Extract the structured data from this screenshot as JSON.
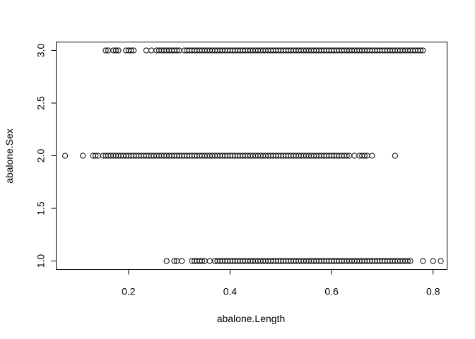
{
  "chart_data": {
    "type": "scatter",
    "title": "",
    "xlabel": "abalone.Length",
    "ylabel": "abalone.Sex",
    "xlim": [
      0.0575,
      0.8275
    ],
    "ylim": [
      0.92,
      3.08
    ],
    "xticks": [
      0.2,
      0.4,
      0.6,
      0.8
    ],
    "xtick_labels": [
      "0.2",
      "0.4",
      "0.6",
      "0.8"
    ],
    "yticks": [
      1.0,
      1.5,
      2.0,
      2.5,
      3.0
    ],
    "ytick_labels": [
      "1.0",
      "1.5",
      "2.0",
      "2.5",
      "3.0"
    ],
    "grid": false,
    "marker": "open-circle",
    "series": [
      {
        "y": 3.0,
        "x": [
          0.155,
          0.16,
          0.17,
          0.175,
          0.18,
          0.195,
          0.2,
          0.205,
          0.21,
          0.235,
          0.245,
          0.255,
          0.26,
          0.265,
          0.27,
          0.275,
          0.28,
          0.285,
          0.29,
          0.295,
          0.3,
          0.31,
          0.315,
          0.32,
          0.325,
          0.33,
          0.335,
          0.34,
          0.345,
          0.35,
          0.355,
          0.36,
          0.365,
          0.37,
          0.375,
          0.38,
          0.385,
          0.39,
          0.395,
          0.4,
          0.405,
          0.41,
          0.415,
          0.42,
          0.425,
          0.43,
          0.435,
          0.44,
          0.445,
          0.45,
          0.455,
          0.46,
          0.465,
          0.47,
          0.475,
          0.48,
          0.485,
          0.49,
          0.495,
          0.5,
          0.505,
          0.51,
          0.515,
          0.52,
          0.525,
          0.53,
          0.535,
          0.54,
          0.545,
          0.55,
          0.555,
          0.56,
          0.565,
          0.57,
          0.575,
          0.58,
          0.585,
          0.59,
          0.595,
          0.6,
          0.605,
          0.61,
          0.615,
          0.62,
          0.625,
          0.63,
          0.635,
          0.64,
          0.645,
          0.65,
          0.655,
          0.66,
          0.665,
          0.67,
          0.675,
          0.68,
          0.685,
          0.69,
          0.695,
          0.7,
          0.705,
          0.71,
          0.715,
          0.72,
          0.725,
          0.73,
          0.735,
          0.74,
          0.745,
          0.75,
          0.755,
          0.76,
          0.765,
          0.77,
          0.775,
          0.78
        ]
      },
      {
        "y": 2.0,
        "x": [
          0.075,
          0.11,
          0.13,
          0.135,
          0.14,
          0.15,
          0.155,
          0.16,
          0.165,
          0.17,
          0.175,
          0.18,
          0.185,
          0.19,
          0.195,
          0.2,
          0.205,
          0.21,
          0.215,
          0.22,
          0.225,
          0.23,
          0.235,
          0.24,
          0.245,
          0.25,
          0.255,
          0.26,
          0.265,
          0.27,
          0.275,
          0.28,
          0.285,
          0.29,
          0.295,
          0.3,
          0.305,
          0.31,
          0.315,
          0.32,
          0.325,
          0.33,
          0.335,
          0.34,
          0.345,
          0.35,
          0.355,
          0.36,
          0.365,
          0.37,
          0.375,
          0.38,
          0.385,
          0.39,
          0.395,
          0.4,
          0.405,
          0.41,
          0.415,
          0.42,
          0.425,
          0.43,
          0.435,
          0.44,
          0.445,
          0.45,
          0.455,
          0.46,
          0.465,
          0.47,
          0.475,
          0.48,
          0.485,
          0.49,
          0.495,
          0.5,
          0.505,
          0.51,
          0.515,
          0.52,
          0.525,
          0.53,
          0.535,
          0.54,
          0.545,
          0.55,
          0.555,
          0.56,
          0.565,
          0.57,
          0.575,
          0.58,
          0.585,
          0.59,
          0.595,
          0.6,
          0.605,
          0.61,
          0.615,
          0.62,
          0.625,
          0.63,
          0.635,
          0.645,
          0.655,
          0.66,
          0.665,
          0.67,
          0.68,
          0.725
        ]
      },
      {
        "y": 1.0,
        "x": [
          0.275,
          0.29,
          0.295,
          0.305,
          0.325,
          0.33,
          0.335,
          0.34,
          0.345,
          0.35,
          0.36,
          0.37,
          0.375,
          0.38,
          0.385,
          0.39,
          0.395,
          0.4,
          0.405,
          0.41,
          0.415,
          0.42,
          0.425,
          0.43,
          0.435,
          0.44,
          0.445,
          0.45,
          0.455,
          0.46,
          0.465,
          0.47,
          0.475,
          0.48,
          0.485,
          0.49,
          0.495,
          0.5,
          0.505,
          0.51,
          0.515,
          0.52,
          0.525,
          0.53,
          0.535,
          0.54,
          0.545,
          0.55,
          0.555,
          0.56,
          0.565,
          0.57,
          0.575,
          0.58,
          0.585,
          0.59,
          0.595,
          0.6,
          0.605,
          0.61,
          0.615,
          0.62,
          0.625,
          0.63,
          0.635,
          0.64,
          0.645,
          0.65,
          0.655,
          0.66,
          0.665,
          0.67,
          0.675,
          0.68,
          0.685,
          0.69,
          0.695,
          0.7,
          0.705,
          0.71,
          0.715,
          0.72,
          0.725,
          0.73,
          0.735,
          0.74,
          0.745,
          0.75,
          0.755,
          0.78,
          0.8,
          0.815
        ]
      }
    ]
  }
}
